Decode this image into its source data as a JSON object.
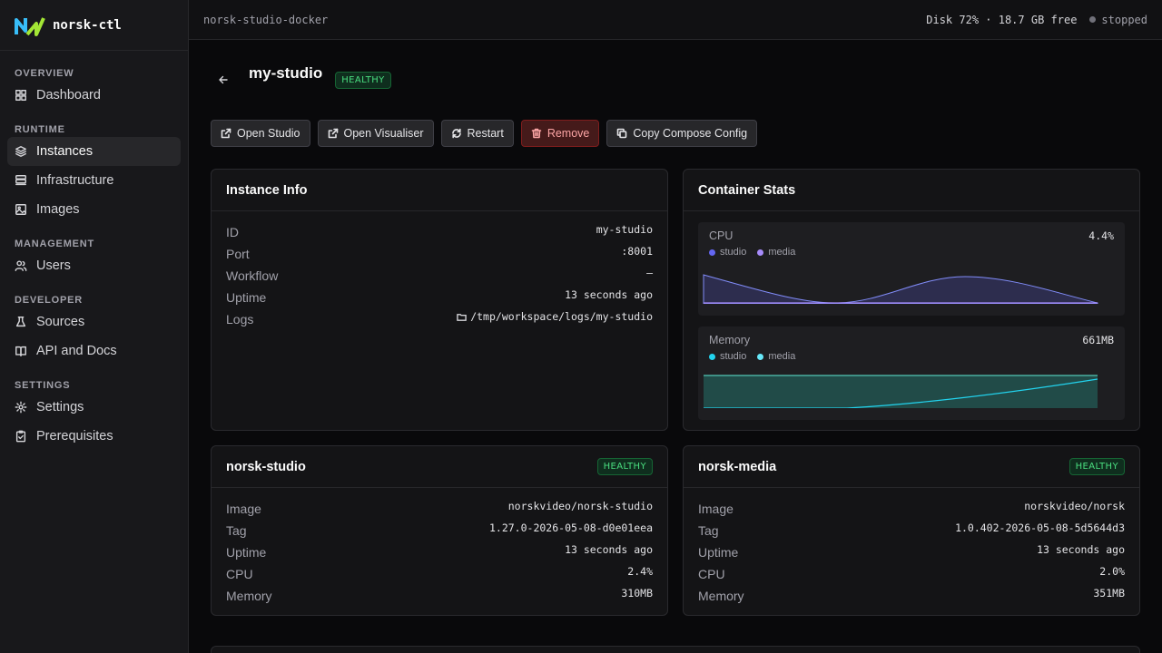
{
  "brand": {
    "name": "norsk-ctl"
  },
  "sidebar": {
    "sections": [
      {
        "label": "OVERVIEW"
      },
      {
        "label": "RUNTIME"
      },
      {
        "label": "MANAGEMENT"
      },
      {
        "label": "DEVELOPER"
      },
      {
        "label": "SETTINGS"
      }
    ],
    "items": {
      "dashboard": "Dashboard",
      "instances": "Instances",
      "infrastructure": "Infrastructure",
      "images": "Images",
      "users": "Users",
      "sources": "Sources",
      "api_docs": "API and Docs",
      "settings": "Settings",
      "prerequisites": "Prerequisites"
    }
  },
  "topbar": {
    "context": "norsk-studio-docker",
    "disk": "Disk 72% · 18.7 GB free",
    "status": "stopped"
  },
  "page": {
    "title": "my-studio",
    "badge": "HEALTHY",
    "back_icon": "arrow-left-icon"
  },
  "actions": {
    "open_studio": "Open Studio",
    "open_visualiser": "Open Visualiser",
    "restart": "Restart",
    "remove": "Remove",
    "copy_compose": "Copy Compose Config"
  },
  "instance_info": {
    "title": "Instance Info",
    "rows": [
      {
        "key": "ID",
        "value": "my-studio"
      },
      {
        "key": "Port",
        "value": ":8001"
      },
      {
        "key": "Workflow",
        "value": "—"
      },
      {
        "key": "Uptime",
        "value": "13 seconds ago"
      },
      {
        "key": "Logs",
        "value": "/tmp/workspace/logs/my-studio"
      }
    ]
  },
  "container_stats": {
    "title": "Container Stats",
    "cpu": {
      "label": "CPU",
      "value": "4.4%",
      "legend": [
        "studio",
        "media"
      ],
      "color": "#6366f1"
    },
    "memory": {
      "label": "Memory",
      "value": "661MB",
      "legend": [
        "studio",
        "media"
      ],
      "color": "#22d3ee"
    }
  },
  "norsk_studio": {
    "title": "norsk-studio",
    "badge": "HEALTHY",
    "rows": [
      {
        "key": "Image",
        "value": "norskvideo/norsk-studio"
      },
      {
        "key": "Tag",
        "value": "1.27.0-2026-05-08-d0e01eea"
      },
      {
        "key": "Uptime",
        "value": "13 seconds ago"
      },
      {
        "key": "CPU",
        "value": "2.4%"
      },
      {
        "key": "Memory",
        "value": "310MB"
      }
    ]
  },
  "norsk_media": {
    "title": "norsk-media",
    "badge": "HEALTHY",
    "rows": [
      {
        "key": "Image",
        "value": "norskvideo/norsk"
      },
      {
        "key": "Tag",
        "value": "1.0.402-2026-05-08-5d5644d3"
      },
      {
        "key": "Uptime",
        "value": "13 seconds ago"
      },
      {
        "key": "CPU",
        "value": "2.0%"
      },
      {
        "key": "Memory",
        "value": "351MB"
      }
    ]
  },
  "colors": {
    "healthy": "#4ade80",
    "danger": "#fca5a5",
    "cpu_studio": "#6366f1",
    "cpu_media": "#a78bfa",
    "mem_studio": "#22d3ee",
    "mem_media": "#67e8f9"
  }
}
